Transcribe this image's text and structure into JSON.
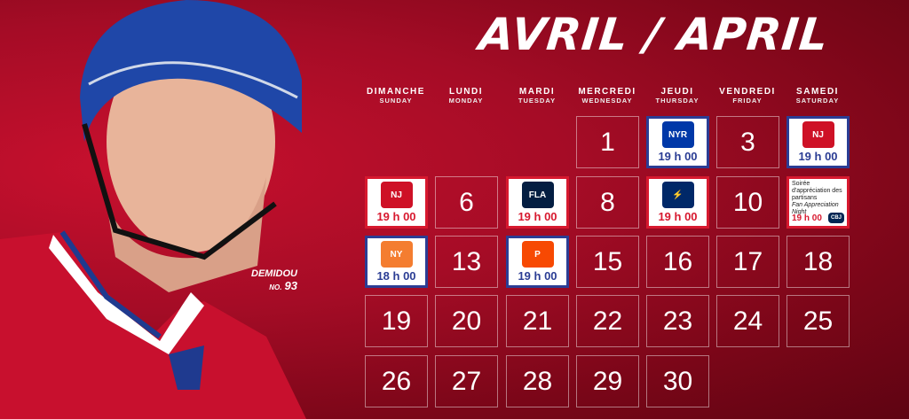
{
  "title": "AVRIL / APRIL",
  "player": {
    "name": "DEMIDOU",
    "number_label": "NO.",
    "number": "93"
  },
  "days": [
    {
      "fr": "DIMANCHE",
      "en": "SUNDAY"
    },
    {
      "fr": "LUNDI",
      "en": "MONDAY"
    },
    {
      "fr": "MARDI",
      "en": "TUESDAY"
    },
    {
      "fr": "MERCREDI",
      "en": "WEDNESDAY"
    },
    {
      "fr": "JEUDI",
      "en": "THURSDAY"
    },
    {
      "fr": "VENDREDI",
      "en": "FRIDAY"
    },
    {
      "fr": "SAMEDI",
      "en": "SATURDAY"
    }
  ],
  "colors": {
    "home": "#d7192f",
    "away": "#2b3d94"
  },
  "weeks": [
    [
      null,
      null,
      null,
      {
        "day": "1"
      },
      {
        "game": true,
        "home": false,
        "opponent": "new-york-rangers-logo",
        "time": "19 h 00"
      },
      {
        "day": "3"
      },
      {
        "game": true,
        "home": false,
        "opponent": "new-jersey-devils-logo",
        "time": "19 h 00"
      }
    ],
    [
      {
        "game": true,
        "home": true,
        "opponent": "new-jersey-devils-logo",
        "time": "19 h 00"
      },
      {
        "day": "6"
      },
      {
        "game": true,
        "home": true,
        "opponent": "florida-panthers-logo",
        "time": "19 h 00"
      },
      {
        "day": "8"
      },
      {
        "game": true,
        "home": true,
        "opponent": "tampa-bay-lightning-logo",
        "time": "19 h 00"
      },
      {
        "day": "10"
      },
      {
        "game": true,
        "home": true,
        "opponent": "columbus-blue-jackets-logo",
        "time": "19 h 00",
        "promo_fr": "Soirée d'appréciation des partisans",
        "promo_en": "Fan Appreciation Night"
      }
    ],
    [
      {
        "game": true,
        "home": false,
        "opponent": "new-york-islanders-logo",
        "time": "18 h 00"
      },
      {
        "day": "13"
      },
      {
        "game": true,
        "home": false,
        "opponent": "philadelphia-flyers-logo",
        "time": "19 h 00"
      },
      {
        "day": "15"
      },
      {
        "day": "16"
      },
      {
        "day": "17"
      },
      {
        "day": "18"
      }
    ],
    [
      {
        "day": "19"
      },
      {
        "day": "20"
      },
      {
        "day": "21"
      },
      {
        "day": "22"
      },
      {
        "day": "23"
      },
      {
        "day": "24"
      },
      {
        "day": "25"
      }
    ],
    [
      {
        "day": "26"
      },
      {
        "day": "27"
      },
      {
        "day": "28"
      },
      {
        "day": "29"
      },
      {
        "day": "30"
      },
      null,
      null
    ]
  ]
}
